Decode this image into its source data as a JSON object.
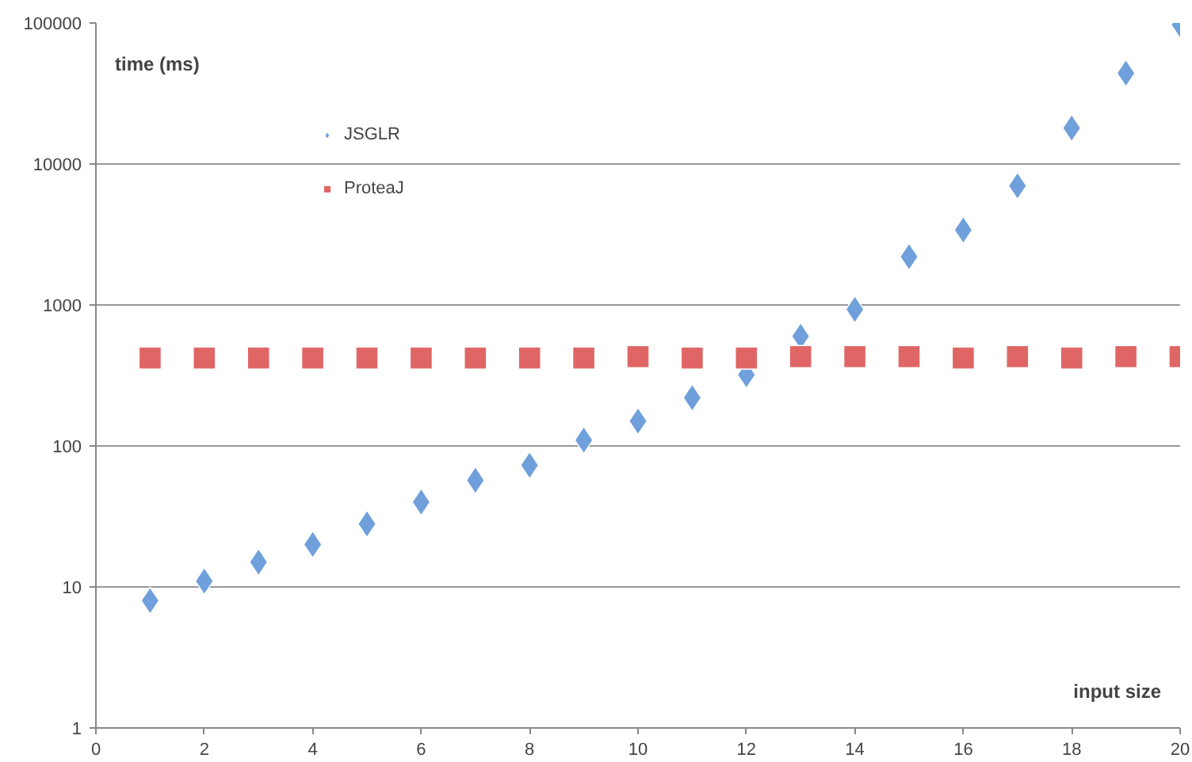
{
  "chart_data": {
    "type": "scatter",
    "xlabel": "input size",
    "ylabel": "time (ms)",
    "x": [
      1,
      2,
      3,
      4,
      5,
      6,
      7,
      8,
      9,
      10,
      11,
      12,
      13,
      14,
      15,
      16,
      17,
      18,
      19,
      20
    ],
    "series": [
      {
        "name": "JSGLR",
        "color": "#6fa0dc",
        "marker": "diamond",
        "values": [
          8,
          11,
          15,
          20,
          28,
          40,
          57,
          73,
          110,
          150,
          220,
          320,
          600,
          930,
          2200,
          3400,
          7000,
          18000,
          44000,
          97000
        ]
      },
      {
        "name": "ProteaJ",
        "color": "#e06666",
        "marker": "square",
        "values": [
          420,
          420,
          420,
          420,
          420,
          420,
          420,
          420,
          420,
          430,
          420,
          420,
          430,
          430,
          430,
          420,
          430,
          420,
          430,
          430
        ]
      }
    ],
    "log": "y",
    "xlim": [
      0,
      20
    ],
    "ylim": [
      1,
      100000
    ],
    "xticks": [
      0,
      2,
      4,
      6,
      8,
      10,
      12,
      14,
      16,
      18,
      20
    ],
    "yticks": [
      1,
      10,
      100,
      1000,
      10000,
      100000
    ],
    "grid": "y",
    "legend": "top left"
  }
}
